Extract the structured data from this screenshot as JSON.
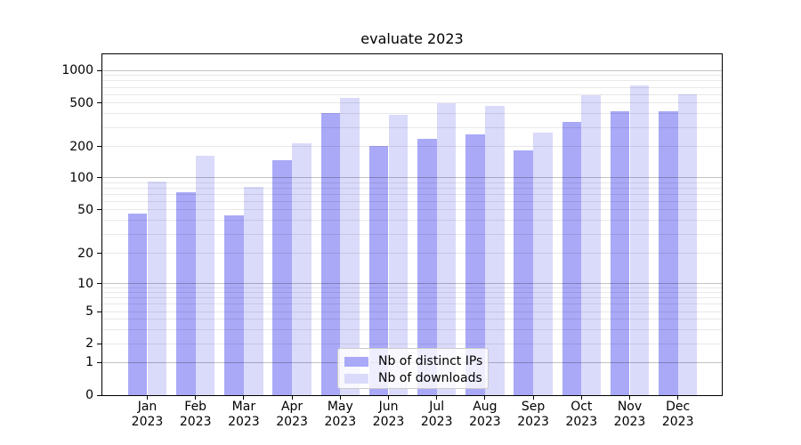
{
  "chart_data": {
    "type": "bar",
    "title": "evaluate 2023",
    "x_categories": [
      "Jan",
      "Feb",
      "Mar",
      "Apr",
      "May",
      "Jun",
      "Jul",
      "Aug",
      "Sep",
      "Oct",
      "Nov",
      "Dec"
    ],
    "x_year": "2023",
    "series": [
      {
        "name": "Nb of distinct IPs",
        "color": "#a9a9f8",
        "values": [
          46,
          74,
          45,
          150,
          405,
          205,
          235,
          260,
          183,
          340,
          420,
          420
        ]
      },
      {
        "name": "Nb of downloads",
        "color": "#dadafb",
        "values": [
          93,
          163,
          82,
          215,
          560,
          390,
          500,
          470,
          270,
          590,
          730,
          600
        ]
      }
    ],
    "y_ticks": [
      0,
      1,
      2,
      5,
      10,
      20,
      50,
      100,
      200,
      500,
      1000
    ],
    "y_scale": "symlog",
    "ylim": [
      0,
      1400
    ],
    "grid": true,
    "legend_position": "lower center"
  }
}
